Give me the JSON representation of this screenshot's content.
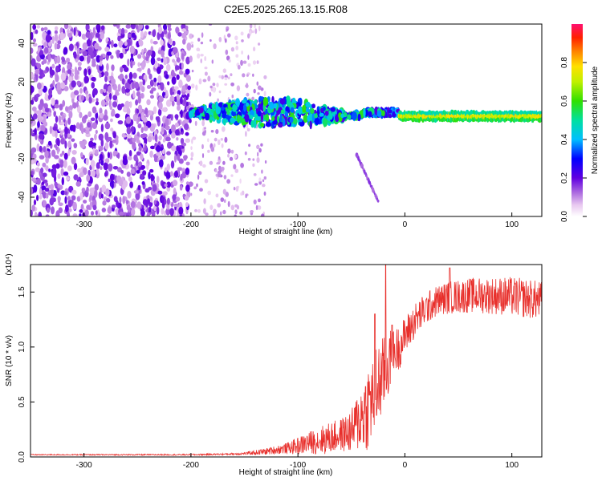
{
  "figure_title": "C2E5.2025.265.13.15.R08",
  "chart_data": [
    {
      "type": "heatmap",
      "xlabel": "Height of straight line (km)",
      "ylabel": "Frequency (Hz)",
      "xlim": [
        -350,
        128
      ],
      "ylim": [
        -50,
        50
      ],
      "xticks": [
        -300,
        -200,
        -100,
        0,
        100
      ],
      "yticks": [
        -40,
        -20,
        0,
        20,
        40
      ],
      "grid": false,
      "colorbar": {
        "label": "Normalized spectral amplitude",
        "range": [
          0,
          1
        ],
        "ticks": [
          "0.0",
          "0.2",
          "0.4",
          "0.6",
          "0.8"
        ]
      },
      "features": [
        {
          "description": "scattered noise",
          "x_range": [
            -350,
            -200
          ],
          "freq_range": [
            -50,
            50
          ],
          "amplitude": 0.1
        },
        {
          "description": "sparse noise",
          "x_range": [
            -200,
            -130
          ],
          "freq_range": [
            -50,
            50
          ],
          "amplitude": 0.05
        },
        {
          "description": "band",
          "x_range": [
            -200,
            -5
          ],
          "freq_center": 4,
          "freq_halfwidth": [
            1,
            7
          ],
          "amplitude": [
            0.2,
            0.6
          ]
        },
        {
          "description": "stable tone",
          "x_range": [
            -5,
            128
          ],
          "freq_center": 2,
          "amplitude": 0.8
        },
        {
          "description": "descending trace",
          "x_start": -45,
          "x_end": -25,
          "freq_start": -18,
          "freq_end": -42
        }
      ]
    },
    {
      "type": "line",
      "xlabel": "Height of straight line (km)",
      "ylabel": "SNR (10 * v/v)",
      "y_multiplier": "(x10⁴)",
      "xlim": [
        -350,
        128
      ],
      "ylim": [
        0,
        1.75
      ],
      "xticks": [
        -300,
        -200,
        -100,
        0,
        100
      ],
      "yticks": [
        "0.0",
        "0.5",
        "1.0",
        "1.5"
      ],
      "color": "#e8302c",
      "grid": false,
      "envelope": {
        "x": [
          -350,
          -200,
          -170,
          -150,
          -130,
          -110,
          -100,
          -90,
          -75,
          -60,
          -50,
          -42,
          -35,
          -30,
          -25,
          -20,
          -15,
          -10,
          -5,
          0,
          10,
          20,
          30,
          40,
          60,
          80,
          100,
          128
        ],
        "mid": [
          0.02,
          0.02,
          0.025,
          0.03,
          0.05,
          0.08,
          0.1,
          0.13,
          0.16,
          0.2,
          0.23,
          0.35,
          0.45,
          0.55,
          0.65,
          0.75,
          0.85,
          0.95,
          1.0,
          1.1,
          1.25,
          1.35,
          1.42,
          1.45,
          1.47,
          1.47,
          1.46,
          1.42
        ],
        "amp": [
          0.005,
          0.006,
          0.008,
          0.012,
          0.03,
          0.05,
          0.08,
          0.1,
          0.14,
          0.15,
          0.2,
          0.3,
          0.4,
          0.4,
          0.4,
          0.35,
          0.3,
          0.22,
          0.2,
          0.18,
          0.16,
          0.15,
          0.14,
          0.15,
          0.16,
          0.17,
          0.18,
          0.18
        ]
      },
      "peaks": [
        {
          "x": -18,
          "y": 1.75
        },
        {
          "x": -28,
          "y": 1.3
        },
        {
          "x": -12,
          "y": 1.2
        },
        {
          "x": 42,
          "y": 1.72
        }
      ]
    }
  ]
}
